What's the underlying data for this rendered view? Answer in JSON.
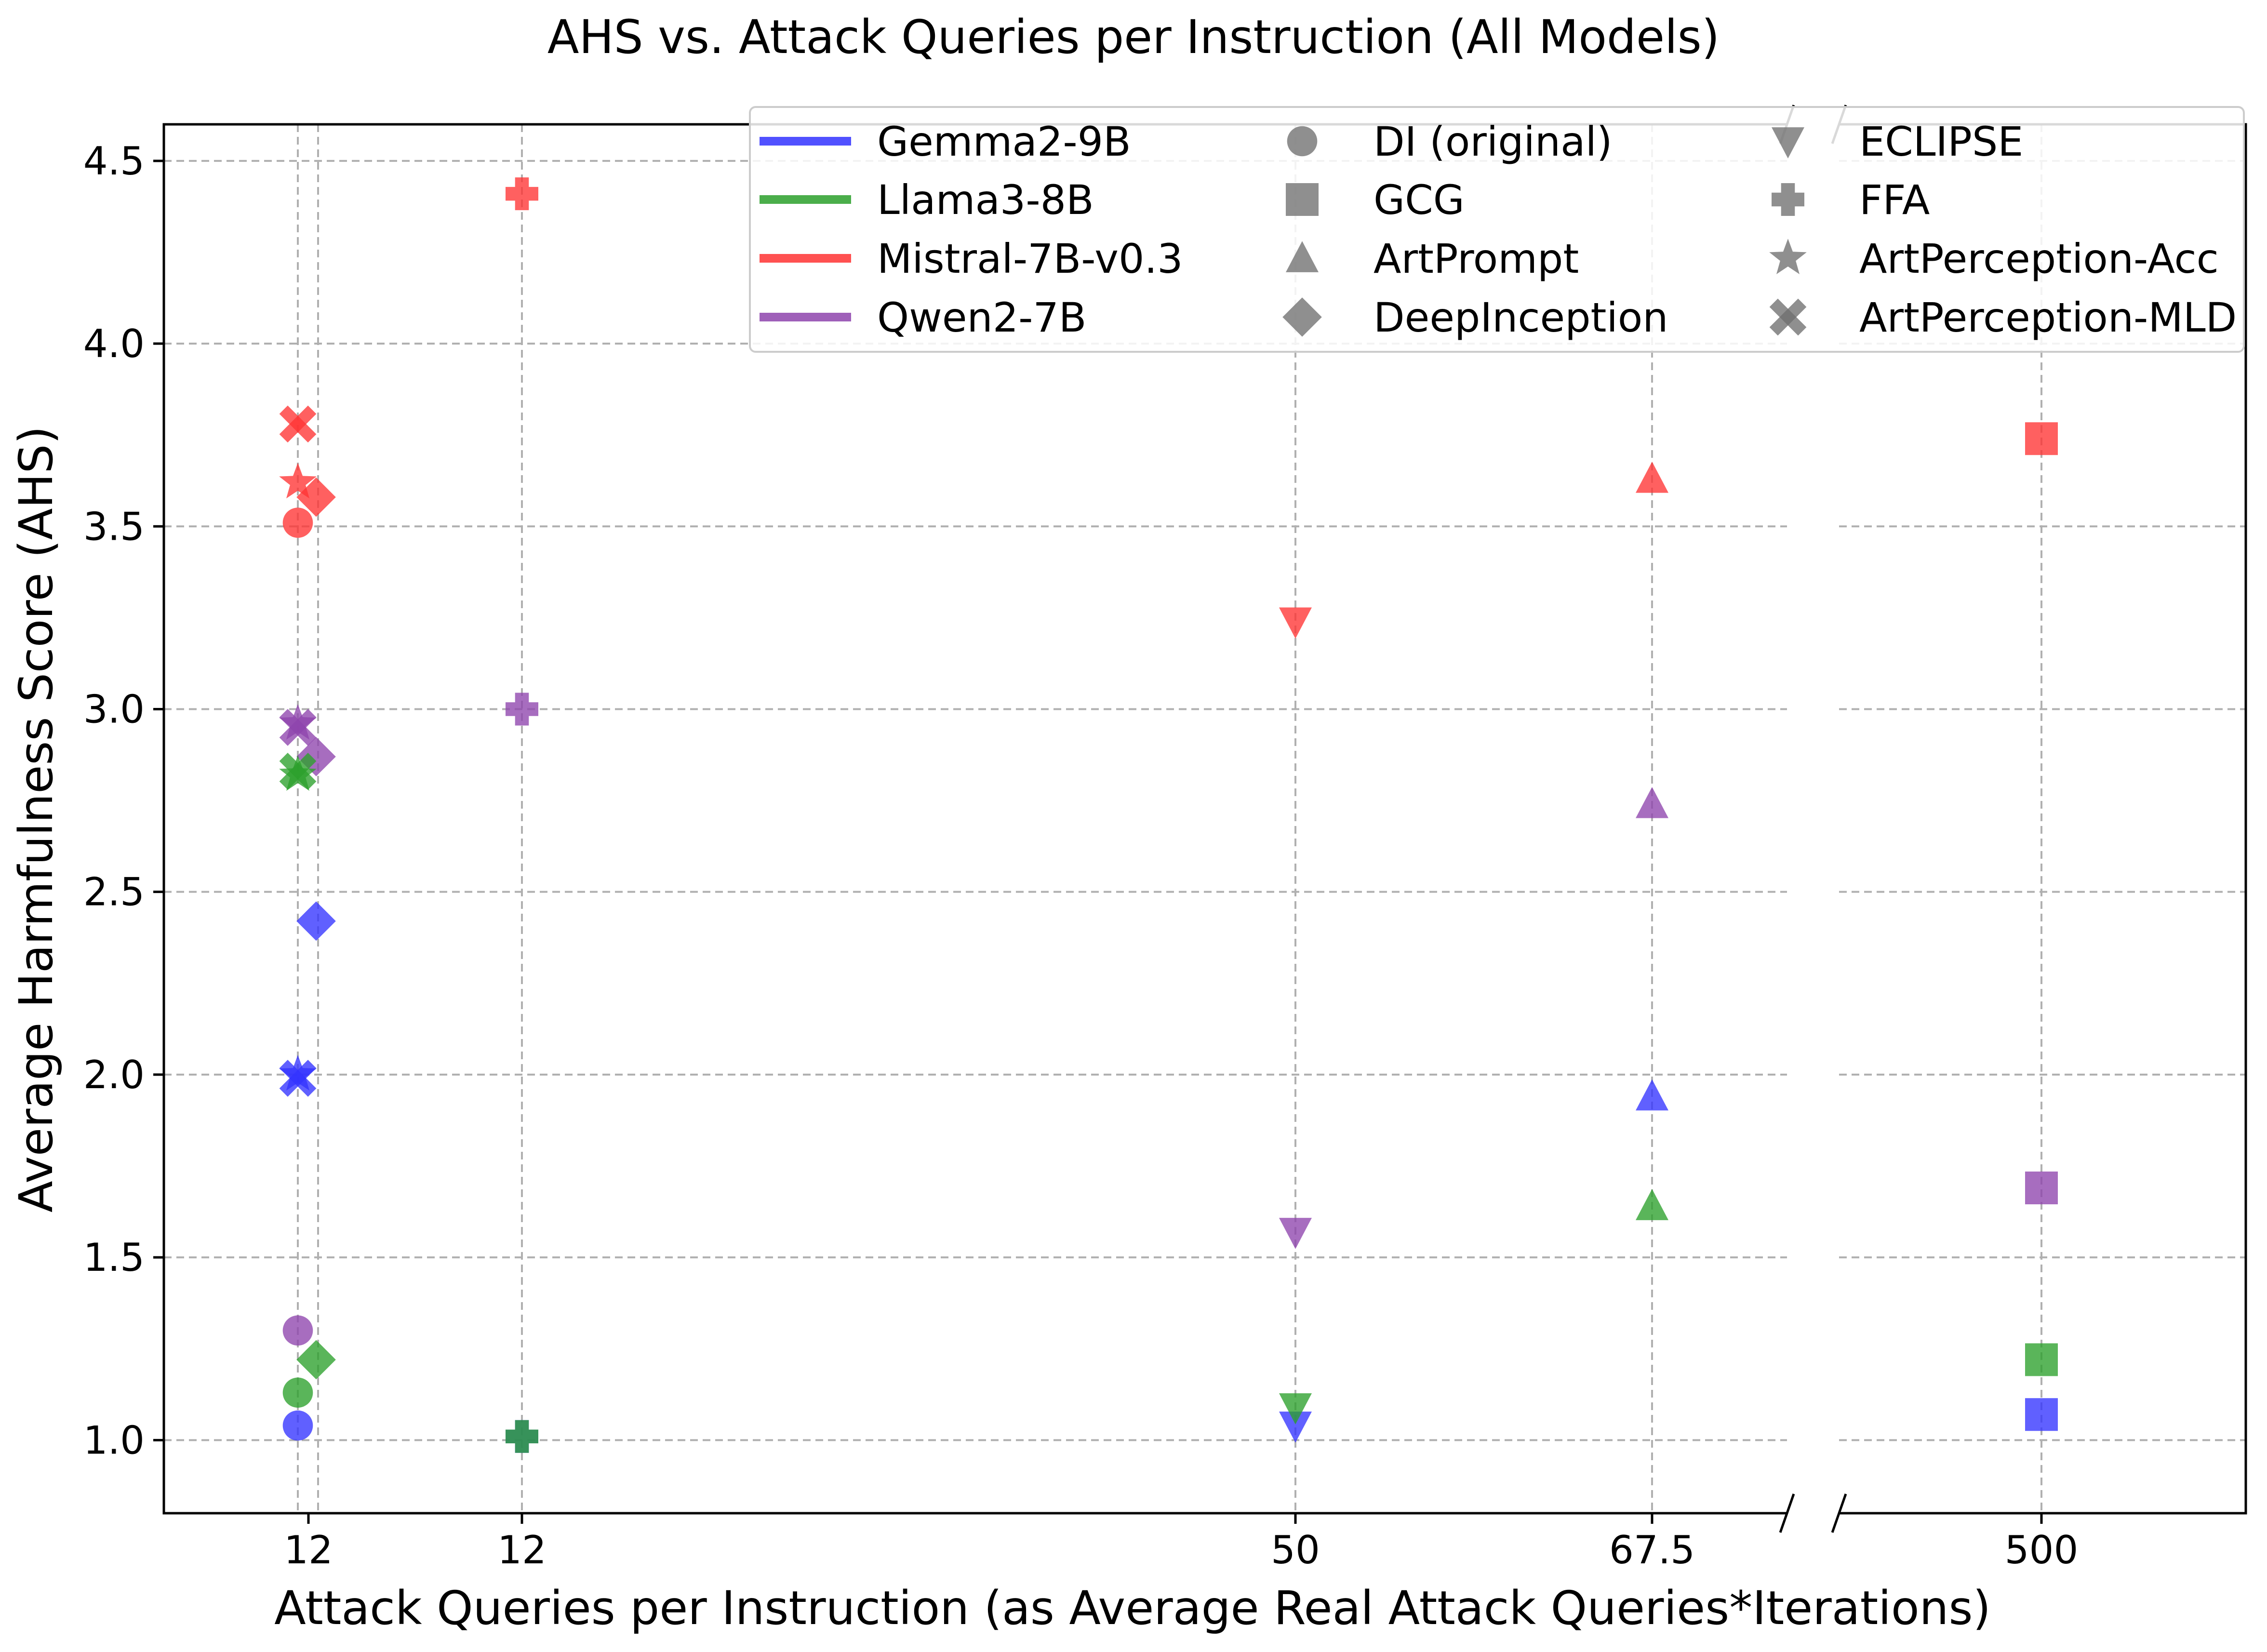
{
  "chart_data": {
    "type": "scatter",
    "title": "AHS vs. Attack Queries per Instruction (All Models)",
    "xlabel": "Attack Queries per Instruction (as Average Real Attack Queries*Iterations)",
    "ylabel": "Average Harmfulness Score (AHS)",
    "ylim": [
      0.8,
      4.6
    ],
    "yticks": [
      "1.0",
      "1.5",
      "2.0",
      "2.5",
      "3.0",
      "3.5",
      "4.0",
      "4.5"
    ],
    "x_axis_break": true,
    "x_categories": [
      {
        "key": "a",
        "label": "12"
      },
      {
        "key": "b",
        "label": "12"
      },
      {
        "key": "c",
        "label": "50"
      },
      {
        "key": "d",
        "label": "67.5"
      },
      {
        "key": "e",
        "label": "500"
      }
    ],
    "models": [
      {
        "name": "Gemma2-9B",
        "color": "#3333ff"
      },
      {
        "name": "Llama3-8B",
        "color": "#2ca02c"
      },
      {
        "name": "Mistral-7B-v0.3",
        "color": "#ff3333"
      },
      {
        "name": "Qwen2-7B",
        "color": "#8e44ad"
      }
    ],
    "methods": [
      {
        "name": "DI (original)",
        "marker": "circle"
      },
      {
        "name": "GCG",
        "marker": "square"
      },
      {
        "name": "ArtPrompt",
        "marker": "triangle-up"
      },
      {
        "name": "DeepInception",
        "marker": "diamond"
      },
      {
        "name": "ECLIPSE",
        "marker": "triangle-down"
      },
      {
        "name": "FFA",
        "marker": "plus"
      },
      {
        "name": "ArtPerception-Acc",
        "marker": "star"
      },
      {
        "name": "ArtPerception-MLD",
        "marker": "x"
      }
    ],
    "points": [
      {
        "model": "Gemma2-9B",
        "method": "DI (original)",
        "x": "a",
        "y": 1.04
      },
      {
        "model": "Llama3-8B",
        "method": "DI (original)",
        "x": "a",
        "y": 1.13
      },
      {
        "model": "Mistral-7B-v0.3",
        "method": "DI (original)",
        "x": "a",
        "y": 3.51
      },
      {
        "model": "Qwen2-7B",
        "method": "DI (original)",
        "x": "a",
        "y": 1.3
      },
      {
        "model": "Gemma2-9B",
        "method": "DeepInception",
        "x": "a",
        "y": 2.42
      },
      {
        "model": "Llama3-8B",
        "method": "DeepInception",
        "x": "a",
        "y": 1.22
      },
      {
        "model": "Mistral-7B-v0.3",
        "method": "DeepInception",
        "x": "a",
        "y": 3.58
      },
      {
        "model": "Qwen2-7B",
        "method": "DeepInception",
        "x": "a",
        "y": 2.87
      },
      {
        "model": "Gemma2-9B",
        "method": "ArtPerception-Acc",
        "x": "a",
        "y": 2.0
      },
      {
        "model": "Llama3-8B",
        "method": "ArtPerception-Acc",
        "x": "a",
        "y": 2.82
      },
      {
        "model": "Mistral-7B-v0.3",
        "method": "ArtPerception-Acc",
        "x": "a",
        "y": 3.62
      },
      {
        "model": "Qwen2-7B",
        "method": "ArtPerception-Acc",
        "x": "a",
        "y": 2.96
      },
      {
        "model": "Gemma2-9B",
        "method": "ArtPerception-MLD",
        "x": "a",
        "y": 1.99
      },
      {
        "model": "Llama3-8B",
        "method": "ArtPerception-MLD",
        "x": "a",
        "y": 2.83
      },
      {
        "model": "Mistral-7B-v0.3",
        "method": "ArtPerception-MLD",
        "x": "a",
        "y": 3.78
      },
      {
        "model": "Qwen2-7B",
        "method": "ArtPerception-MLD",
        "x": "a",
        "y": 2.95
      },
      {
        "model": "Gemma2-9B",
        "method": "FFA",
        "x": "b",
        "y": 1.01
      },
      {
        "model": "Llama3-8B",
        "method": "FFA",
        "x": "b",
        "y": 1.01
      },
      {
        "model": "Mistral-7B-v0.3",
        "method": "FFA",
        "x": "b",
        "y": 4.41
      },
      {
        "model": "Qwen2-7B",
        "method": "FFA",
        "x": "b",
        "y": 3.0
      },
      {
        "model": "Gemma2-9B",
        "method": "ECLIPSE",
        "x": "c",
        "y": 1.04
      },
      {
        "model": "Llama3-8B",
        "method": "ECLIPSE",
        "x": "c",
        "y": 1.09
      },
      {
        "model": "Mistral-7B-v0.3",
        "method": "ECLIPSE",
        "x": "c",
        "y": 3.24
      },
      {
        "model": "Qwen2-7B",
        "method": "ECLIPSE",
        "x": "c",
        "y": 1.57
      },
      {
        "model": "Gemma2-9B",
        "method": "ArtPrompt",
        "x": "d",
        "y": 1.94
      },
      {
        "model": "Llama3-8B",
        "method": "ArtPrompt",
        "x": "d",
        "y": 1.64
      },
      {
        "model": "Mistral-7B-v0.3",
        "method": "ArtPrompt",
        "x": "d",
        "y": 3.63
      },
      {
        "model": "Qwen2-7B",
        "method": "ArtPrompt",
        "x": "d",
        "y": 2.74
      },
      {
        "model": "Gemma2-9B",
        "method": "GCG",
        "x": "e",
        "y": 1.07
      },
      {
        "model": "Llama3-8B",
        "method": "GCG",
        "x": "e",
        "y": 1.22
      },
      {
        "model": "Mistral-7B-v0.3",
        "method": "GCG",
        "x": "e",
        "y": 3.74
      },
      {
        "model": "Qwen2-7B",
        "method": "GCG",
        "x": "e",
        "y": 1.69
      }
    ]
  }
}
